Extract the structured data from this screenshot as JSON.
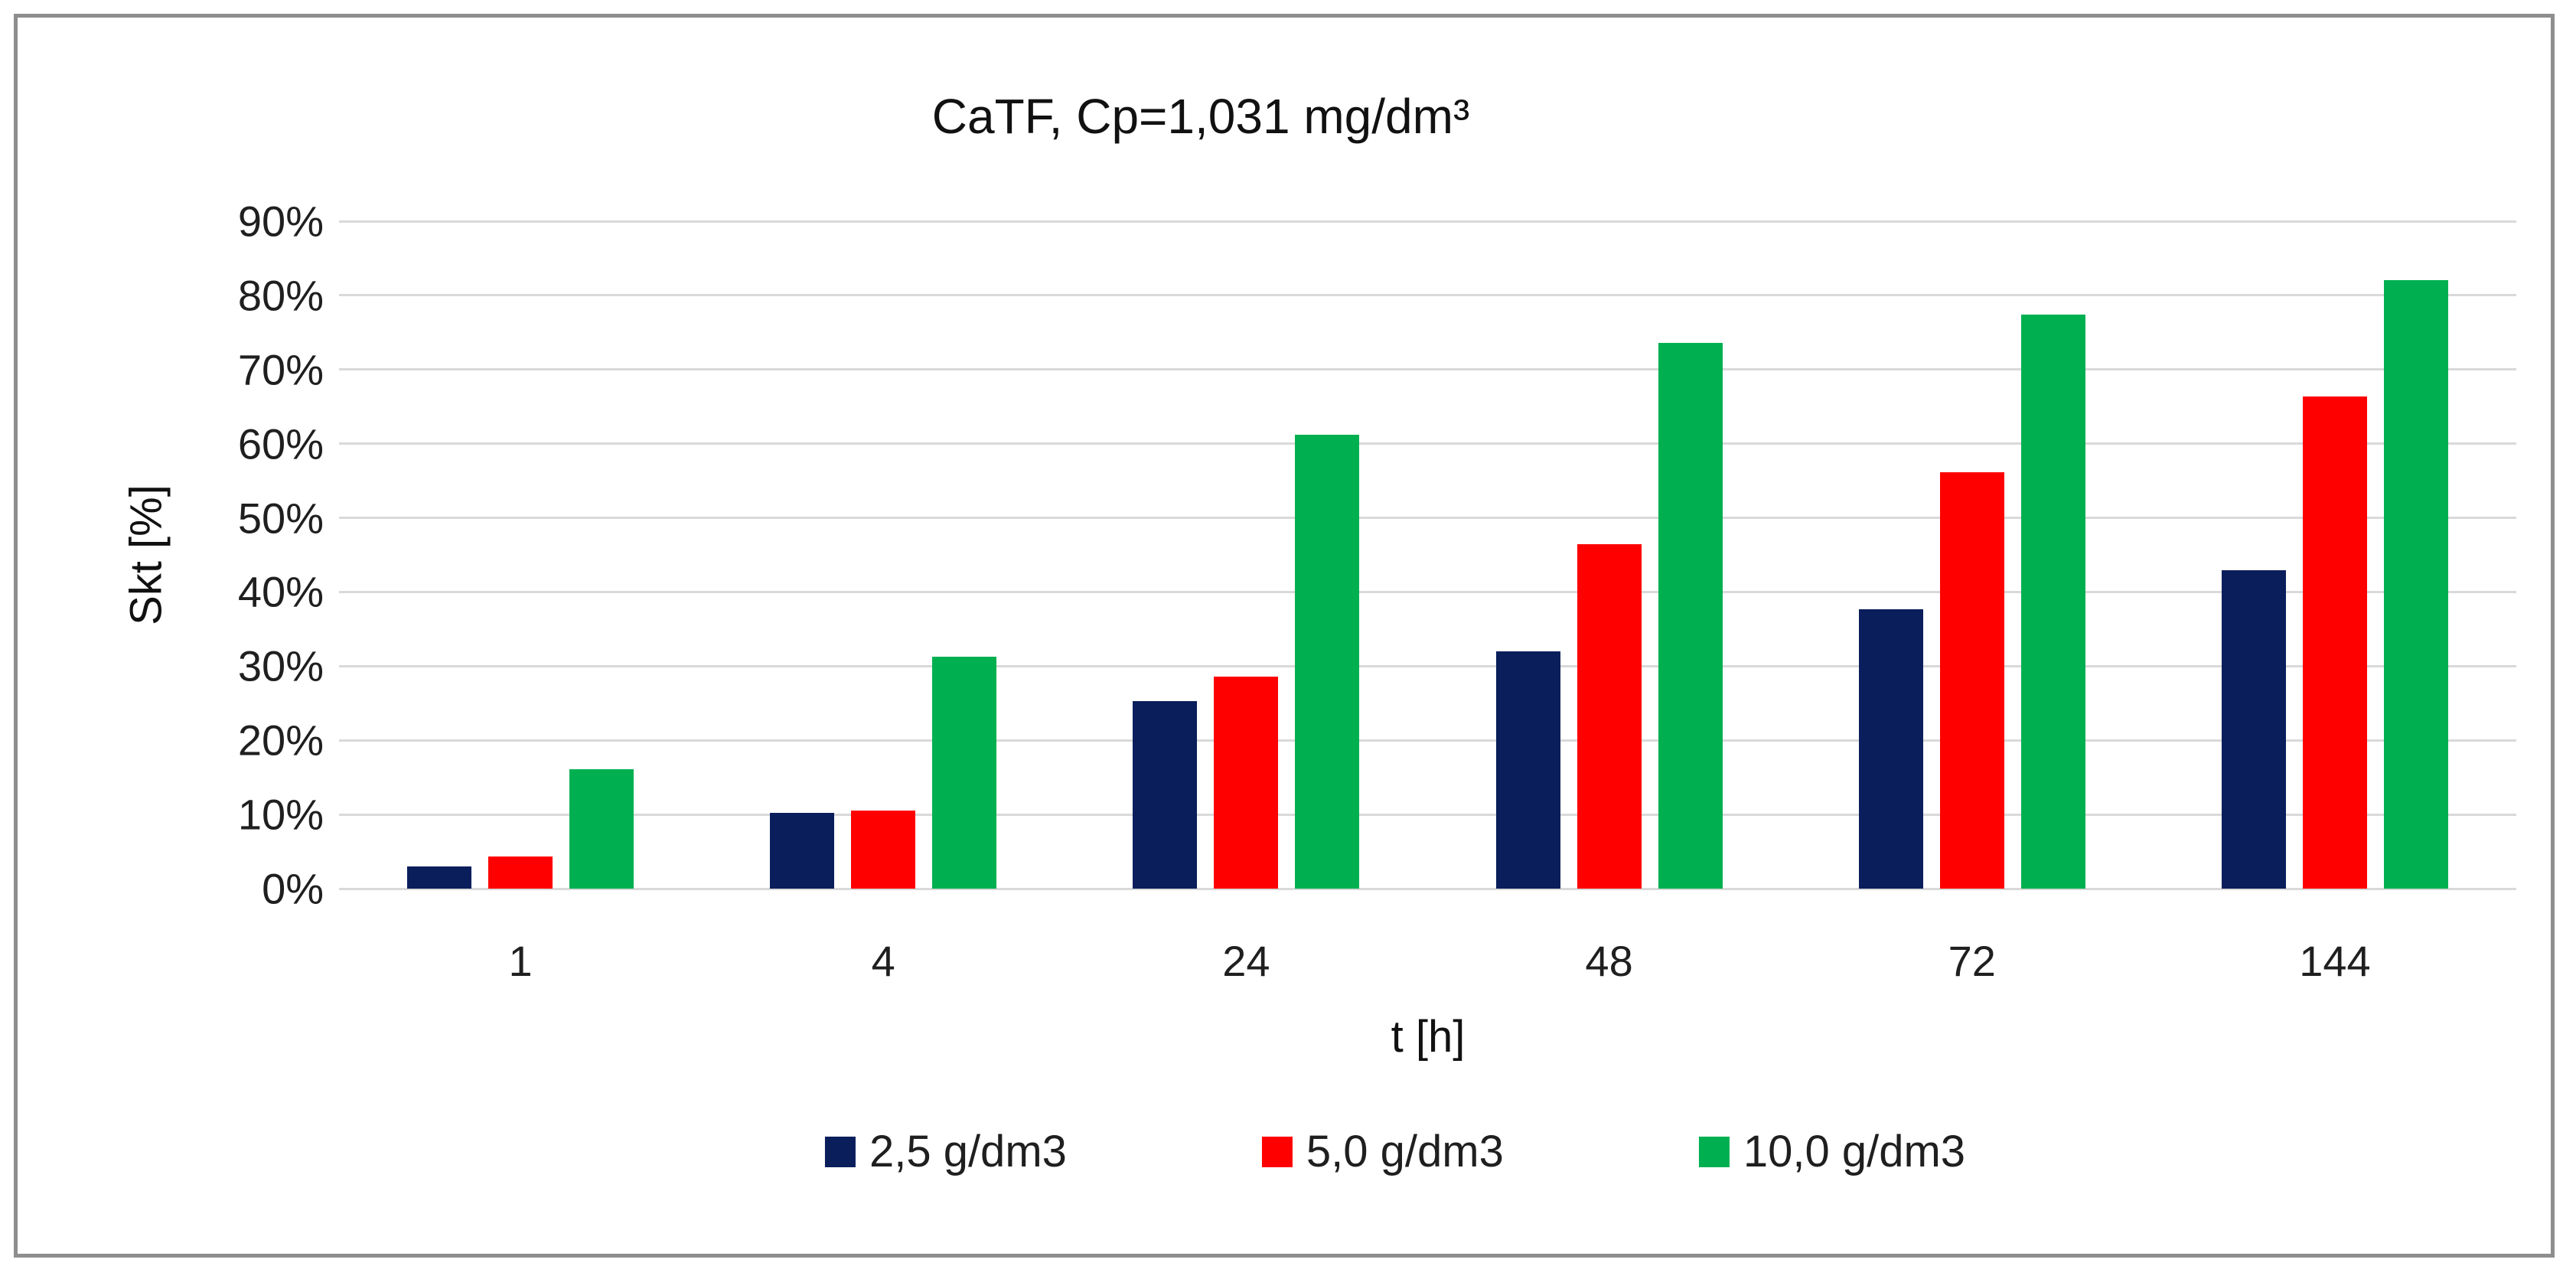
{
  "chart_data": {
    "type": "bar",
    "title": "CaTF, Cp=1,031 mg/dm³",
    "xlabel": "t [h]",
    "ylabel": "Skt [%]",
    "categories": [
      "1",
      "4",
      "24",
      "48",
      "72",
      "144"
    ],
    "series": [
      {
        "name": "2,5 g/dm3",
        "color": "#0A1E5C",
        "values": [
          3.0,
          10.2,
          25.3,
          32.0,
          37.7,
          42.9
        ]
      },
      {
        "name": "5,0 g/dm3",
        "color": "#FF0000",
        "values": [
          4.3,
          10.5,
          28.6,
          46.4,
          56.1,
          66.4
        ]
      },
      {
        "name": "10,0 g/dm3",
        "color": "#00B050",
        "values": [
          16.1,
          31.3,
          61.2,
          73.6,
          77.4,
          82.1
        ]
      }
    ],
    "ylim": [
      0,
      90
    ],
    "ytick_step": 10,
    "ytick_labels": [
      "0%",
      "10%",
      "20%",
      "30%",
      "40%",
      "50%",
      "60%",
      "70%",
      "80%",
      "90%"
    ],
    "grid": true,
    "legend_position": "bottom",
    "colors": {
      "gridline": "#d9d9d9",
      "border": "#8e8e8e",
      "text": "#1f1f1f"
    }
  }
}
